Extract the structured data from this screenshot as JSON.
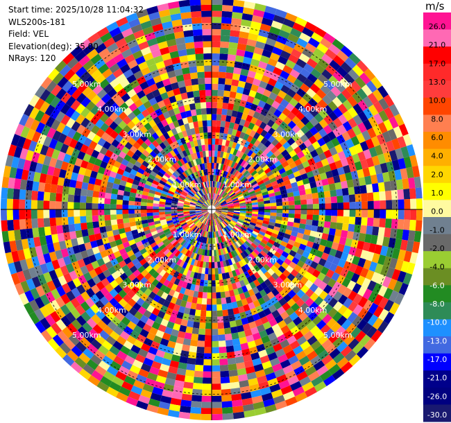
{
  "info": {
    "start_time": "Start time: 2025/10/28 11:04:32",
    "instrument": "WLS200s-181",
    "field": "Field: VEL",
    "elevation": "Elevation(deg): 35.00",
    "nrays": "NRays: 120"
  },
  "colorbar": {
    "unit": "m/s",
    "ticks": [
      "26.0",
      "21.0",
      "17.0",
      "13.0",
      "10.0",
      "8.0",
      "6.0",
      "4.0",
      "2.0",
      "1.0",
      "0.0",
      "-1.0",
      "-2.0",
      "-4.0",
      "-6.0",
      "-8.0",
      "-10.0",
      "-13.0",
      "-17.0",
      "-21.0",
      "-26.0",
      "-30.0"
    ],
    "colors": [
      "#ff1493",
      "#ff69b4",
      "#ff0000",
      "#ff2a2a",
      "#ff3c3c",
      "#ff4500",
      "#ff7f50",
      "#ff8c00",
      "#ffb000",
      "#ffd700",
      "#ffff00",
      "#fffaa0",
      "#708090",
      "#696969",
      "#9acd32",
      "#6b8e23",
      "#228b22",
      "#2e8b57",
      "#1e90ff",
      "#4169e1",
      "#0000ff",
      "#00008b",
      "#000080",
      "#191970"
    ]
  },
  "chart_data": {
    "type": "heatmap",
    "projection": "polar PPI",
    "field": "VEL",
    "unit": "m/s",
    "nrays": 120,
    "range_rings_km": [
      1,
      2,
      3,
      4,
      5
    ],
    "range_labels": [
      {
        "km": 1,
        "text": "1.00km"
      },
      {
        "km": 2,
        "text": "2.00km"
      },
      {
        "km": 3,
        "text": "3.00km"
      },
      {
        "km": 4,
        "text": "4.00km"
      },
      {
        "km": 5,
        "text": "5.00km"
      }
    ],
    "max_range_km": 5.7,
    "colorbar_range": [
      -30,
      26
    ]
  }
}
